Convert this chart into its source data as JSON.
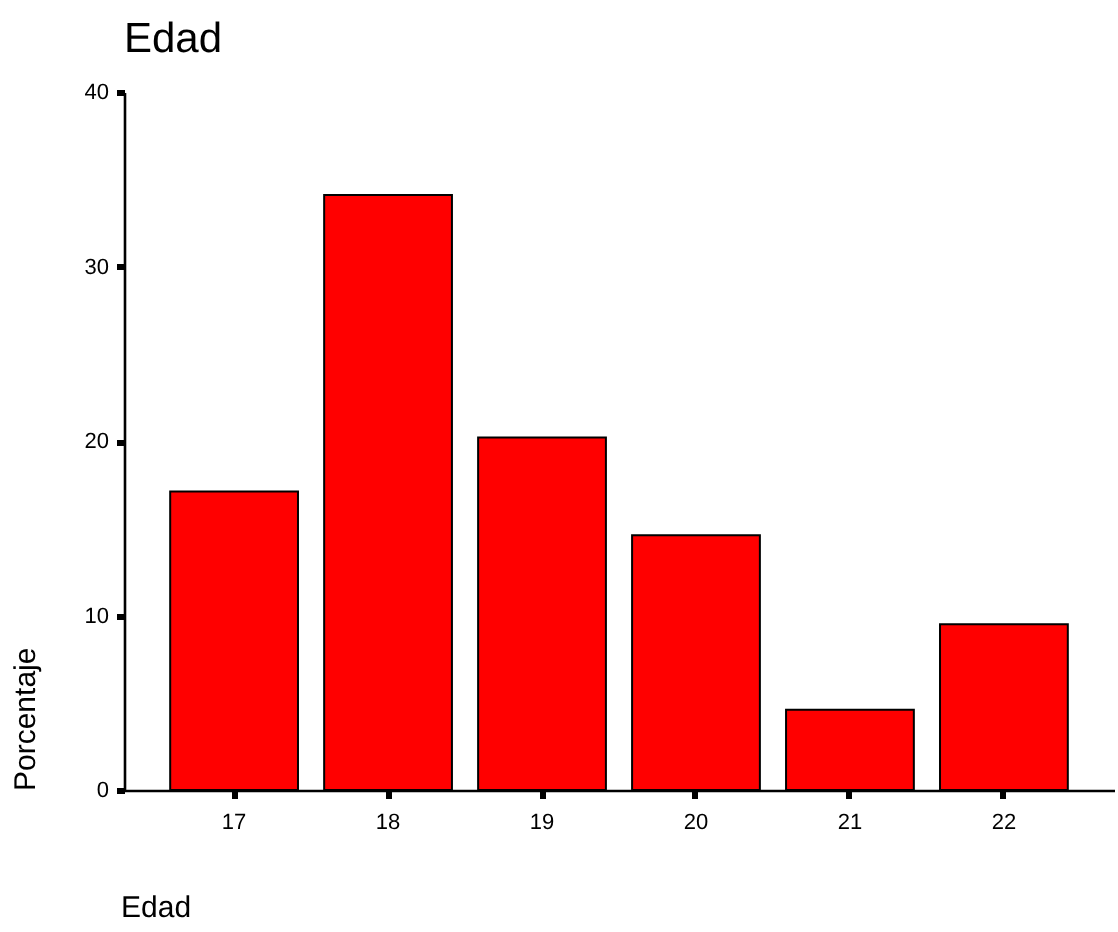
{
  "chart_data": {
    "type": "bar",
    "title": "Edad",
    "xlabel": "Edad",
    "ylabel": "Porcentaje",
    "categories": [
      "17",
      "18",
      "19",
      "20",
      "21",
      "22"
    ],
    "values": [
      17.1,
      34.1,
      20.2,
      14.6,
      4.6,
      9.5
    ],
    "color": "#ff0000",
    "ylim": [
      0,
      40
    ],
    "yticks": [
      0,
      10,
      20,
      30,
      40
    ],
    "grid": false
  }
}
